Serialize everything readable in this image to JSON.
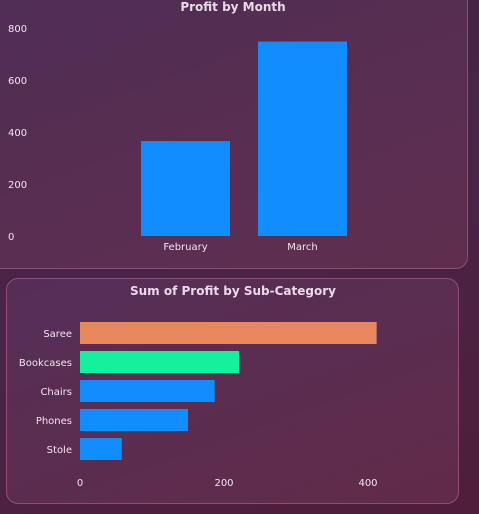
{
  "charts": {
    "month": {
      "type": "bar",
      "title": "Profit by Month",
      "categories": [
        "February",
        "March"
      ],
      "values": [
        365,
        748
      ],
      "ylim": [
        0,
        800
      ],
      "yticks": [
        "0",
        "200",
        "400",
        "600",
        "800"
      ],
      "color": "#118dff"
    },
    "subcat": {
      "type": "bar",
      "orientation": "horizontal",
      "title": "Sum of Profit by Sub-Category",
      "categories": [
        "Saree",
        "Bookcases",
        "Chairs",
        "Phones",
        "Stole"
      ],
      "values": [
        412,
        221,
        187,
        150,
        58
      ],
      "xlim": [
        0,
        400
      ],
      "xticks": [
        "0",
        "200",
        "400"
      ],
      "colors": [
        "#e8875d",
        "#15f09c",
        "#118dff",
        "#118dff",
        "#118dff"
      ]
    }
  },
  "chart_data": [
    {
      "type": "bar",
      "title": "Profit by Month",
      "categories": [
        "February",
        "March"
      ],
      "values": [
        365,
        748
      ],
      "ylim": [
        0,
        800
      ],
      "grid": false
    },
    {
      "type": "bar",
      "orientation": "horizontal",
      "title": "Sum of Profit by Sub-Category",
      "categories": [
        "Saree",
        "Bookcases",
        "Chairs",
        "Phones",
        "Stole"
      ],
      "values": [
        412,
        221,
        187,
        150,
        58
      ],
      "xlim": [
        0,
        400
      ],
      "grid": false
    }
  ]
}
